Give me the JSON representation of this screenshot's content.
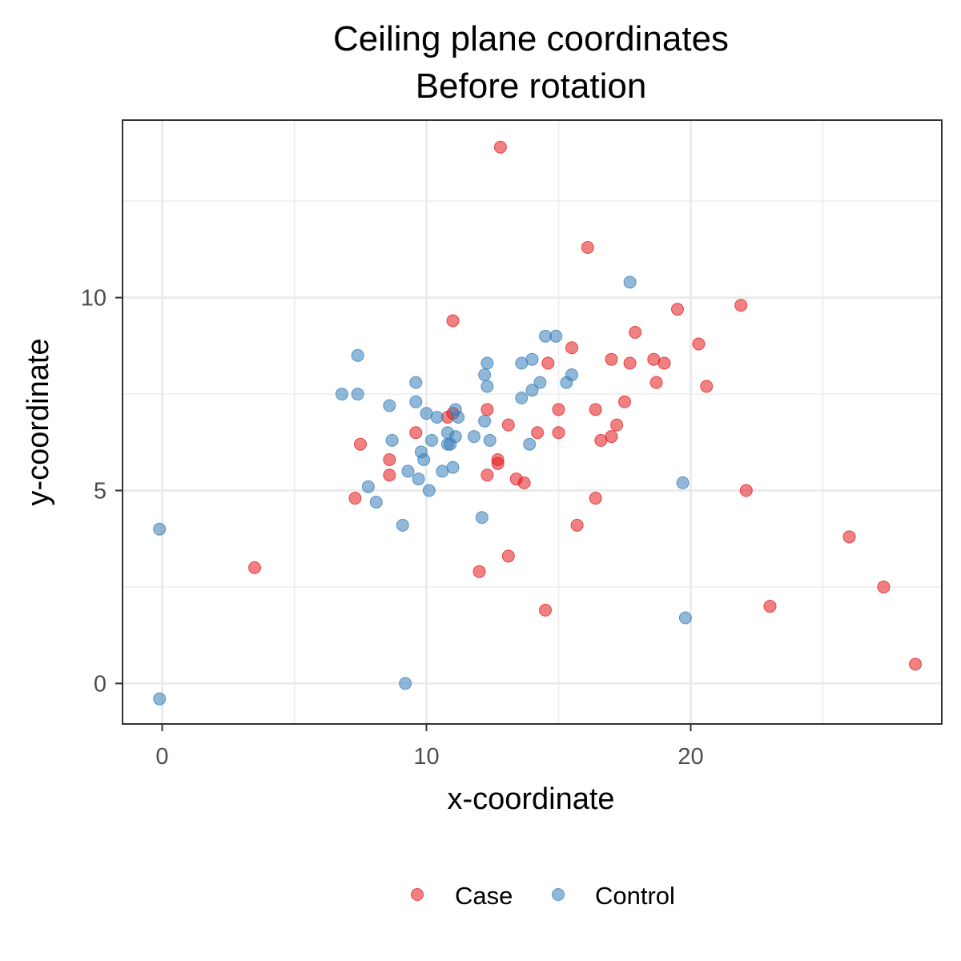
{
  "chart_data": {
    "type": "scatter",
    "title": "Ceiling plane coordinates",
    "subtitle": "Before rotation",
    "xlabel": "x-coordinate",
    "ylabel": "y-coordinate",
    "xlim": [
      -1.5,
      29.5
    ],
    "ylim": [
      -1.05,
      14.6
    ],
    "x_ticks": [
      0,
      10,
      20
    ],
    "y_ticks": [
      0,
      5,
      10
    ],
    "x_tick_labels": [
      "0",
      "10",
      "20"
    ],
    "y_tick_labels": [
      "0",
      "5",
      "10"
    ],
    "x_minor_grid": [
      5,
      15,
      25
    ],
    "y_minor_grid": [
      2.5,
      7.5,
      12.5
    ],
    "grid": true,
    "legend_position": "bottom",
    "series": [
      {
        "name": "Case",
        "color": "#e41a1c",
        "points": [
          [
            12.8,
            13.9
          ],
          [
            16.1,
            11.3
          ],
          [
            21.9,
            9.8
          ],
          [
            19.5,
            9.7
          ],
          [
            11.0,
            9.4
          ],
          [
            17.9,
            9.1
          ],
          [
            20.3,
            8.8
          ],
          [
            15.5,
            8.7
          ],
          [
            17.0,
            8.4
          ],
          [
            18.6,
            8.4
          ],
          [
            19.0,
            8.3
          ],
          [
            17.7,
            8.3
          ],
          [
            14.6,
            8.3
          ],
          [
            18.7,
            7.8
          ],
          [
            20.6,
            7.7
          ],
          [
            17.5,
            7.3
          ],
          [
            15.0,
            7.1
          ],
          [
            16.4,
            7.1
          ],
          [
            12.3,
            7.1
          ],
          [
            10.8,
            6.9
          ],
          [
            11.0,
            7.0
          ],
          [
            13.1,
            6.7
          ],
          [
            17.2,
            6.7
          ],
          [
            9.6,
            6.5
          ],
          [
            14.2,
            6.5
          ],
          [
            15.0,
            6.5
          ],
          [
            17.0,
            6.4
          ],
          [
            16.6,
            6.3
          ],
          [
            7.5,
            6.2
          ],
          [
            8.6,
            5.8
          ],
          [
            12.7,
            5.8
          ],
          [
            12.7,
            5.7
          ],
          [
            8.6,
            5.4
          ],
          [
            12.3,
            5.4
          ],
          [
            13.4,
            5.3
          ],
          [
            13.7,
            5.2
          ],
          [
            22.1,
            5.0
          ],
          [
            7.3,
            4.8
          ],
          [
            16.4,
            4.8
          ],
          [
            15.7,
            4.1
          ],
          [
            26.0,
            3.8
          ],
          [
            3.5,
            3.0
          ],
          [
            13.1,
            3.3
          ],
          [
            12.0,
            2.9
          ],
          [
            27.3,
            2.5
          ],
          [
            23.0,
            2.0
          ],
          [
            14.5,
            1.9
          ],
          [
            28.5,
            0.5
          ]
        ]
      },
      {
        "name": "Control",
        "color": "#377eb8",
        "points": [
          [
            17.7,
            10.4
          ],
          [
            14.5,
            9.0
          ],
          [
            14.9,
            9.0
          ],
          [
            7.4,
            8.5
          ],
          [
            12.3,
            8.3
          ],
          [
            13.6,
            8.3
          ],
          [
            14.0,
            8.4
          ],
          [
            12.2,
            8.0
          ],
          [
            15.5,
            8.0
          ],
          [
            9.6,
            7.8
          ],
          [
            14.3,
            7.8
          ],
          [
            15.3,
            7.8
          ],
          [
            12.3,
            7.7
          ],
          [
            14.0,
            7.6
          ],
          [
            6.8,
            7.5
          ],
          [
            7.4,
            7.5
          ],
          [
            13.6,
            7.4
          ],
          [
            9.6,
            7.3
          ],
          [
            8.6,
            7.2
          ],
          [
            11.1,
            7.1
          ],
          [
            10.0,
            7.0
          ],
          [
            10.4,
            6.9
          ],
          [
            11.2,
            6.9
          ],
          [
            12.2,
            6.8
          ],
          [
            10.8,
            6.5
          ],
          [
            11.1,
            6.4
          ],
          [
            11.8,
            6.4
          ],
          [
            8.7,
            6.3
          ],
          [
            10.2,
            6.3
          ],
          [
            12.4,
            6.3
          ],
          [
            10.9,
            6.2
          ],
          [
            10.8,
            6.2
          ],
          [
            13.9,
            6.2
          ],
          [
            9.8,
            6.0
          ],
          [
            9.9,
            5.8
          ],
          [
            11.0,
            5.6
          ],
          [
            10.6,
            5.5
          ],
          [
            9.3,
            5.5
          ],
          [
            9.7,
            5.3
          ],
          [
            7.8,
            5.1
          ],
          [
            10.1,
            5.0
          ],
          [
            19.7,
            5.2
          ],
          [
            8.1,
            4.7
          ],
          [
            12.1,
            4.3
          ],
          [
            9.1,
            4.1
          ],
          [
            -0.1,
            4.0
          ],
          [
            19.8,
            1.7
          ],
          [
            9.2,
            0.0
          ],
          [
            -0.1,
            -0.4
          ]
        ]
      }
    ]
  }
}
